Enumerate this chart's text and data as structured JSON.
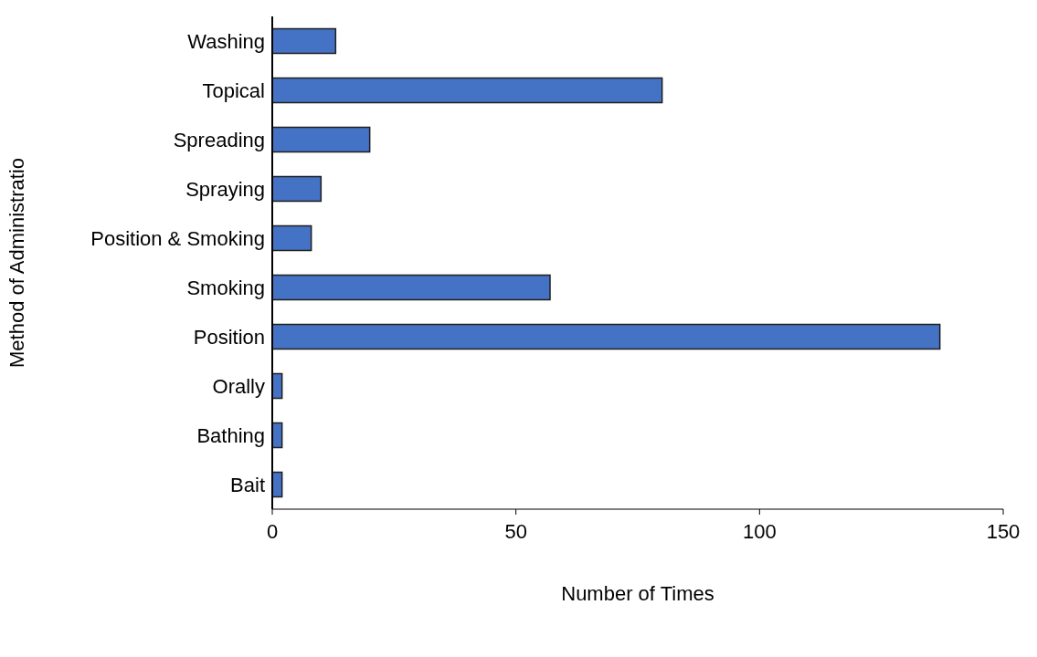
{
  "chart_data": {
    "type": "bar",
    "orientation": "horizontal",
    "categories": [
      "Washing",
      "Topical",
      "Spreading",
      "Spraying",
      "Position & Smoking",
      "Smoking",
      "Position",
      "Orally",
      "Bathing",
      "Bait"
    ],
    "values": [
      13,
      80,
      20,
      10,
      8,
      57,
      137,
      2,
      2,
      2
    ],
    "color": "#4472c4",
    "xlabel": "Number of Times",
    "ylabel": "Method of Administratio",
    "xlim": [
      0,
      150
    ],
    "xticks": [
      0,
      50,
      100,
      150
    ],
    "grid": false
  }
}
